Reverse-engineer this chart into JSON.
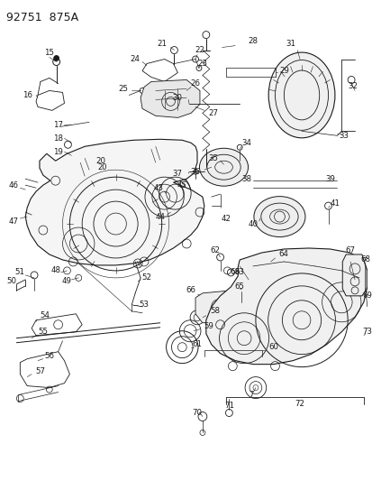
{
  "title": "92751  875A",
  "bg": "#ffffff",
  "lc": "#1a1a1a",
  "tc": "#1a1a1a",
  "fig_w": 4.14,
  "fig_h": 5.33,
  "dpi": 100
}
